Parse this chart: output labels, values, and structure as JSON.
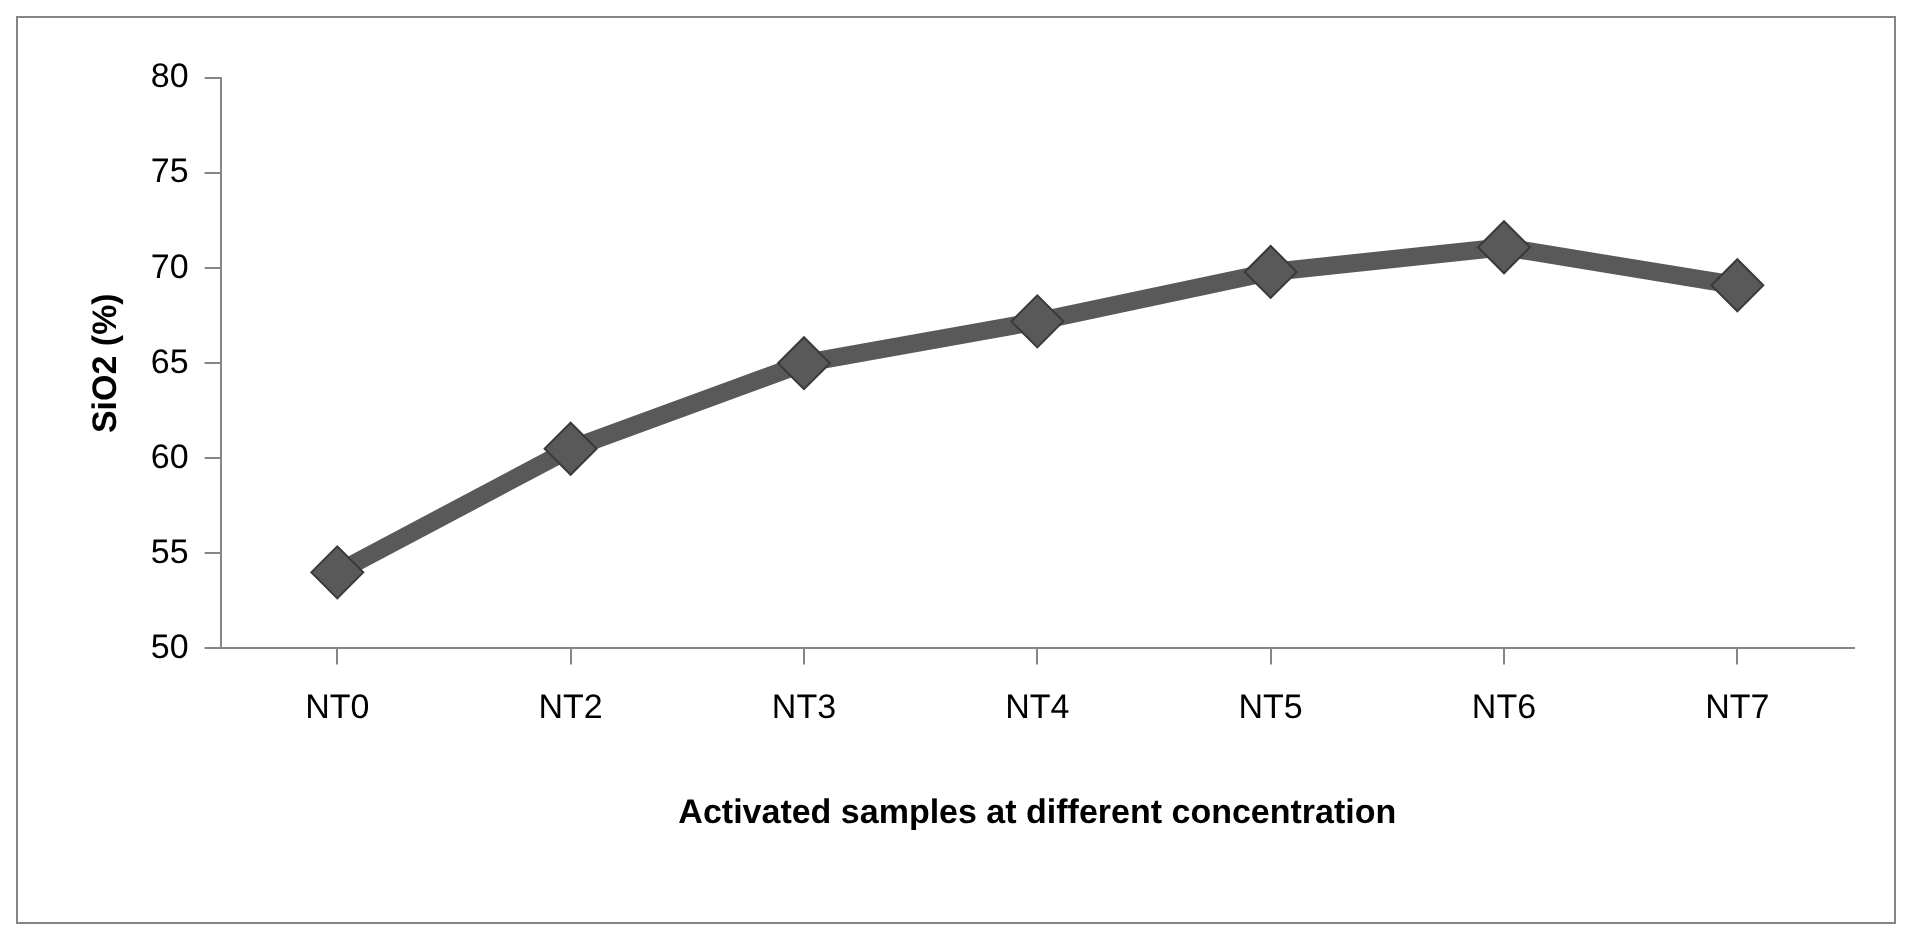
{
  "chart_data": {
    "type": "line",
    "xlabel": "Activated samples at different concentration",
    "ylabel": "SiO2 (%)",
    "categories": [
      "NT0",
      "NT2",
      "NT3",
      "NT4",
      "NT5",
      "NT6",
      "NT7"
    ],
    "series": [
      {
        "color": "#595959",
        "values": [
          54,
          60.5,
          65,
          67.2,
          69.8,
          71.1,
          69.1
        ]
      }
    ],
    "ylim": [
      50,
      80
    ],
    "yticks": [
      50,
      55,
      60,
      65,
      70,
      75,
      80
    ],
    "marker": "diamond",
    "line_style": "solid",
    "legend": false
  }
}
